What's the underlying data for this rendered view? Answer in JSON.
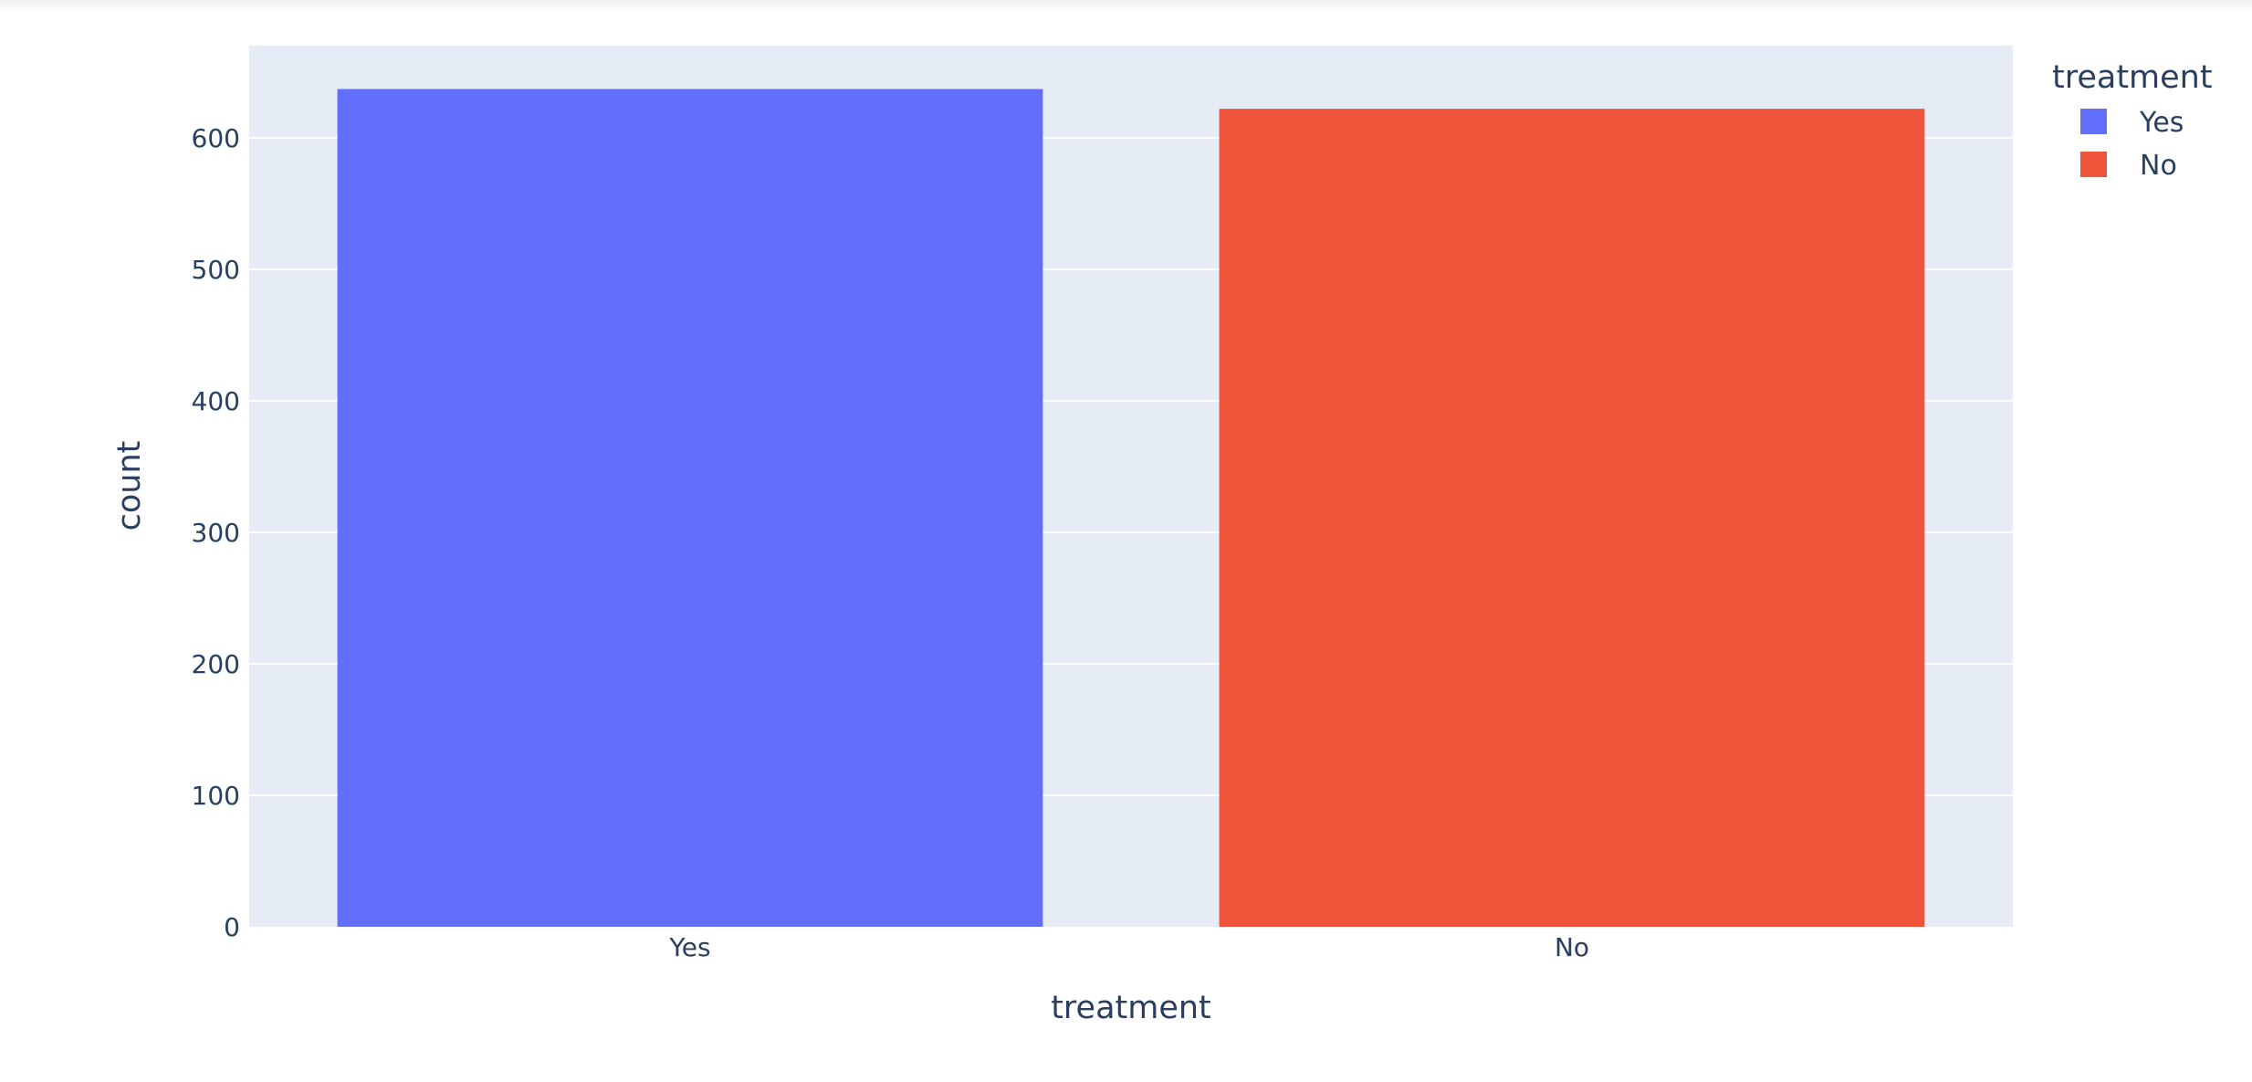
{
  "chart_data": {
    "type": "bar",
    "categories": [
      "Yes",
      "No"
    ],
    "values": [
      637,
      622
    ],
    "colors": [
      "#636efa",
      "#ef553b"
    ],
    "xlabel": "treatment",
    "ylabel": "count",
    "ylim": [
      0,
      670
    ],
    "yticks": [
      0,
      100,
      200,
      300,
      400,
      500,
      600
    ],
    "ytick_labels": [
      "0",
      "100",
      "200",
      "300",
      "400",
      "500",
      "600"
    ],
    "grid": true,
    "plot_background": "#e5ecf6",
    "legend": {
      "title": "treatment",
      "position": "top-right",
      "entries": [
        {
          "label": "Yes",
          "color": "#636efa"
        },
        {
          "label": "No",
          "color": "#ef553b"
        }
      ]
    }
  }
}
